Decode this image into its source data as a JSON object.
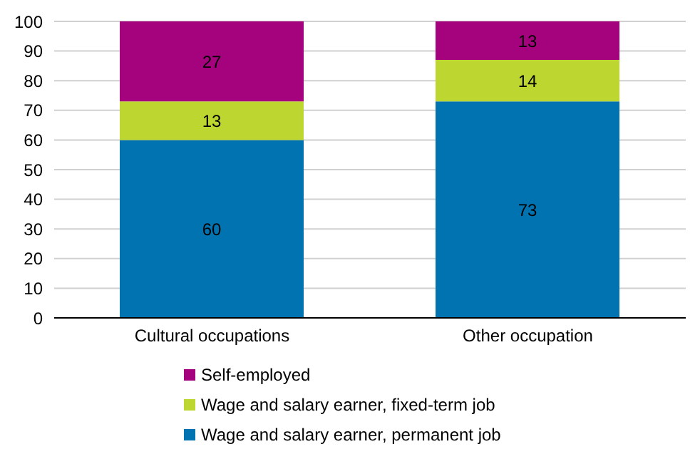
{
  "chart_data": {
    "type": "bar",
    "stacked": true,
    "categories": [
      "Cultural occupations",
      "Other occupation"
    ],
    "series": [
      {
        "name": "Wage and salary earner, permanent job",
        "color": "#0073b0",
        "values": [
          60,
          73
        ]
      },
      {
        "name": "Wage and salary earner, fixed-term job",
        "color": "#bed630",
        "values": [
          13,
          14
        ]
      },
      {
        "name": "Self-employed",
        "color": "#a4037d",
        "values": [
          27,
          13
        ]
      }
    ],
    "ylim": [
      0,
      100
    ],
    "yticks": [
      0,
      10,
      20,
      30,
      40,
      50,
      60,
      70,
      80,
      90,
      100
    ],
    "grid": "y",
    "legend": "bottom",
    "data_labels": true
  }
}
